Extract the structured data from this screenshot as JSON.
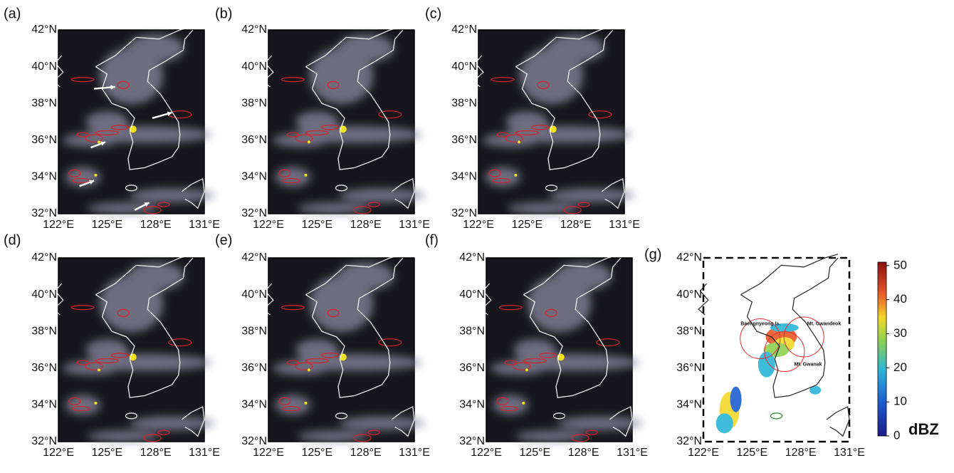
{
  "panels": [
    {
      "label": "(a)"
    },
    {
      "label": "(b)"
    },
    {
      "label": "(c)"
    },
    {
      "label": "(d)"
    },
    {
      "label": "(e)"
    },
    {
      "label": "(f)"
    },
    {
      "label": "(g)",
      "stations": [
        "Baengnyeong Is.",
        "Mt. Gwandeok",
        "Mt. Gwanak"
      ]
    }
  ],
  "axes": {
    "lat_labels": [
      "42°N",
      "40°N",
      "38°N",
      "36°N",
      "34°N",
      "32°N"
    ],
    "lon_labels": [
      "122°E",
      "125°E",
      "128°E",
      "131°E"
    ]
  },
  "colorbar": {
    "lim": [
      0,
      51
    ],
    "ticks": [
      0,
      10,
      20,
      30,
      40,
      50
    ],
    "label": "dBZ"
  }
}
